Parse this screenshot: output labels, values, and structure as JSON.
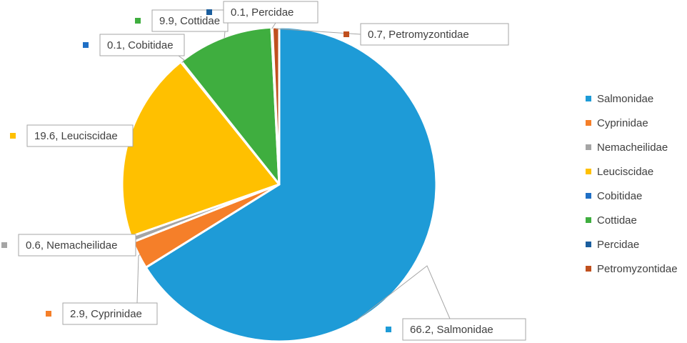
{
  "chart_data": {
    "type": "pie",
    "title": "",
    "legend_position": "right",
    "slices": [
      {
        "name": "Salmonidae",
        "value": 66.2,
        "color": "#1E9BD7",
        "label": "66.2, Salmonidae"
      },
      {
        "name": "Cyprinidae",
        "value": 2.9,
        "color": "#F57F29",
        "label": "2.9, Cyprinidae"
      },
      {
        "name": "Nemacheilidae",
        "value": 0.6,
        "color": "#A5A5A5",
        "label": "0.6, Nemacheilidae"
      },
      {
        "name": "Leuciscidae",
        "value": 19.6,
        "color": "#FFC000",
        "label": "19.6, Leuciscidae"
      },
      {
        "name": "Cobitidae",
        "value": 0.1,
        "color": "#1F6FC5",
        "label": "0.1, Cobitidae"
      },
      {
        "name": "Cottidae",
        "value": 9.9,
        "color": "#3FAE3F",
        "label": "9.9, Cottidae"
      },
      {
        "name": "Percidae",
        "value": 0.1,
        "color": "#1B5E9E",
        "label": "0.1, Percidae"
      },
      {
        "name": "Petromyzontidae",
        "value": 0.7,
        "color": "#C0501E",
        "label": "0.7, Petromyzontidae"
      }
    ]
  }
}
